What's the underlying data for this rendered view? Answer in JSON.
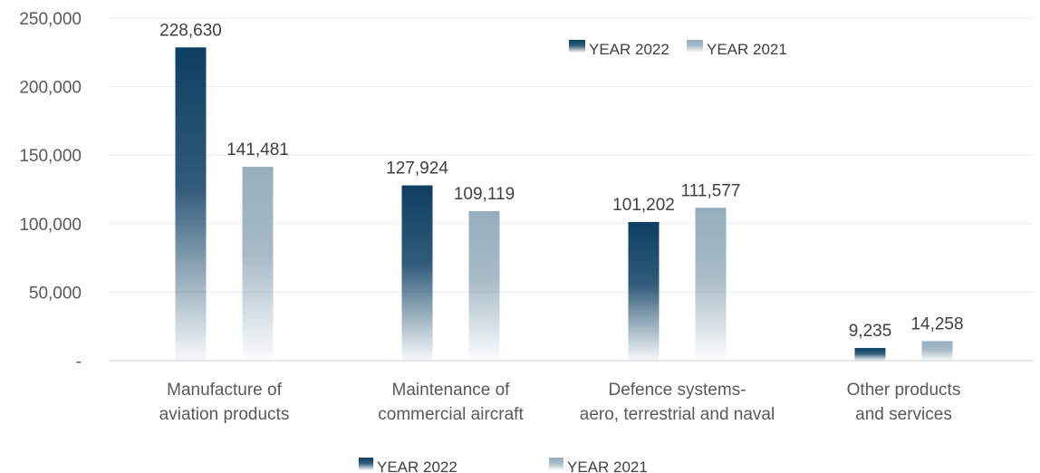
{
  "chart_data": {
    "type": "bar",
    "categories": [
      [
        "Manufacture of",
        "aviation products"
      ],
      [
        "Maintenance of",
        "commercial aircraft"
      ],
      [
        "Defence systems-",
        "aero, terrestrial and naval"
      ],
      [
        "Other products",
        "and services"
      ]
    ],
    "series": [
      {
        "name": "YEAR 2022",
        "values": [
          228630,
          127924,
          101202,
          9235
        ],
        "labels": [
          "228,630",
          "127,924",
          "101,202",
          "9,235"
        ],
        "color": "#0d3f63"
      },
      {
        "name": "YEAR 2021",
        "values": [
          141481,
          109119,
          111577,
          14258
        ],
        "labels": [
          "141,481",
          "109,119",
          "111,577",
          "14,258"
        ],
        "color": "#97aebd"
      }
    ],
    "ylim": [
      0,
      250000
    ],
    "yticks": [
      0,
      50000,
      100000,
      150000,
      200000,
      250000
    ],
    "ytick_labels": [
      "-",
      "50,000",
      "100,000",
      "150,000",
      "200,000",
      "250,000"
    ],
    "title": "",
    "xlabel": "",
    "ylabel": "",
    "grid": true,
    "legends": [
      {
        "placement": "top-center-right"
      },
      {
        "placement": "bottom-center"
      }
    ]
  }
}
